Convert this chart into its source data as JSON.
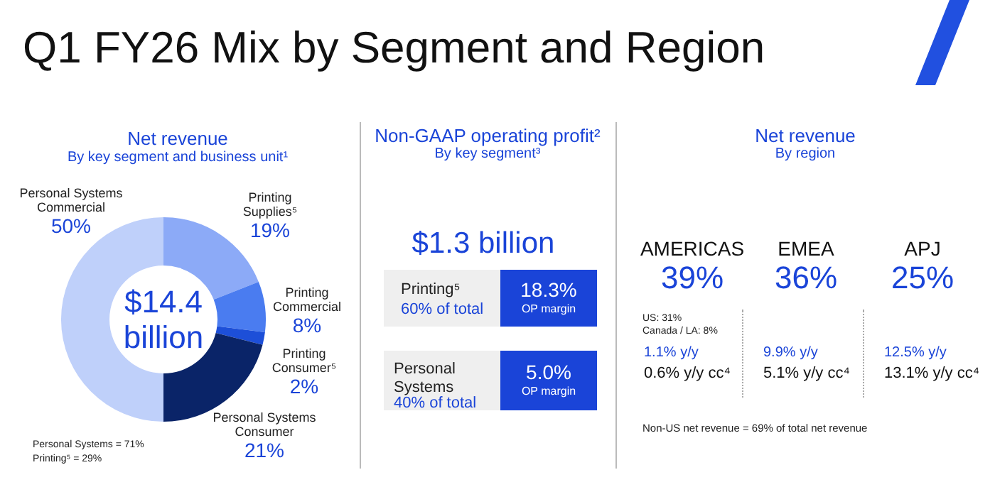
{
  "chart_data": [
    {
      "type": "other",
      "title": "Q1 FY26 Mix by Segment and Region"
    },
    {
      "type": "donut",
      "title": "Net revenue",
      "subtitle": "By key segment and business unit¹",
      "categories": [
        "Printing Supplies⁵",
        "Printing Commercial",
        "Printing Consumer⁵",
        "Personal Systems Consumer",
        "Personal Systems Commercial"
      ],
      "values": [
        19,
        8,
        2,
        21,
        50
      ],
      "value_labels": [
        "19%",
        "8%",
        "2%",
        "21%",
        "50%"
      ],
      "colors": [
        "#8caaf7",
        "#4a7cf0",
        "#1d4fd8",
        "#0a2468",
        "#bfd0fa"
      ],
      "annotations": [
        "$14.4 billion",
        "Personal Systems = 71%",
        "Printing⁵ = 29%"
      ]
    },
    {
      "type": "other",
      "title": "Non-GAAP operating profit²",
      "subtitle": "By key segment³",
      "annotations": [
        "$1.3 billion",
        "Printing⁵",
        "60% of total",
        "18.3%",
        "OP margin",
        "Personal Systems",
        "40% of total",
        "5.0%",
        "OP margin"
      ]
    },
    {
      "type": "other",
      "title": "Net revenue",
      "subtitle": "By region",
      "annotations": [
        "AMERICAS",
        "39%",
        "EMEA",
        "36%",
        "APJ",
        "25%",
        "US: 31%",
        "Canada / LA: 8%",
        "1.1% y/y",
        "0.6% y/y cc⁴",
        "9.9% y/y",
        "5.1% y/y cc⁴",
        "12.5% y/y",
        "13.1% y/y cc⁴",
        "Non-US net revenue = 69% of total net revenue"
      ]
    }
  ]
}
